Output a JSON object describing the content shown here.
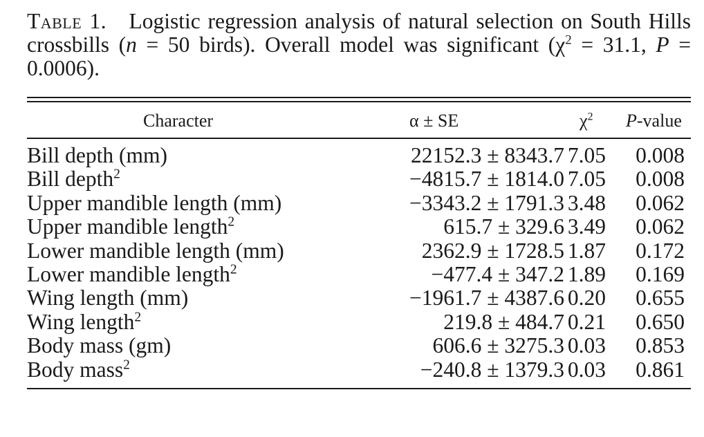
{
  "caption": {
    "label": "Table 1.",
    "text_1": "Logistic regression analysis of natural selection on South Hills crossbills (",
    "n_var": "n",
    "text_2": " = 50 birds). Overall model was significant (χ",
    "sup": "2",
    "text_3": " = 31.1, ",
    "p_var": "P",
    "text_4": " = 0.0006)."
  },
  "table": {
    "headers": {
      "character": "Character",
      "alpha_se": "α ± SE",
      "chi": "χ",
      "chi_sup": "2",
      "p_var": "P",
      "p_suffix": "-value"
    },
    "rows": [
      {
        "character": "Bill depth (mm)",
        "sup": "",
        "alpha_se": "22152.3 ± 8343.7",
        "chi2": "7.05",
        "p": "0.008"
      },
      {
        "character": "Bill depth",
        "sup": "2",
        "alpha_se": "−4815.7 ± 1814.0",
        "chi2": "7.05",
        "p": "0.008"
      },
      {
        "character": "Upper mandible length (mm)",
        "sup": "",
        "alpha_se": "−3343.2 ± 1791.3",
        "chi2": "3.48",
        "p": "0.062"
      },
      {
        "character": "Upper mandible length",
        "sup": "2",
        "alpha_se": "615.7 ± 329.6",
        "chi2": "3.49",
        "p": "0.062"
      },
      {
        "character": "Lower mandible length (mm)",
        "sup": "",
        "alpha_se": "2362.9 ± 1728.5",
        "chi2": "1.87",
        "p": "0.172"
      },
      {
        "character": "Lower mandible length",
        "sup": "2",
        "alpha_se": "−477.4 ± 347.2",
        "chi2": "1.89",
        "p": "0.169"
      },
      {
        "character": "Wing length (mm)",
        "sup": "",
        "alpha_se": "−1961.7 ± 4387.6",
        "chi2": "0.20",
        "p": "0.655"
      },
      {
        "character": "Wing length",
        "sup": "2",
        "alpha_se": "219.8 ± 484.7",
        "chi2": "0.21",
        "p": "0.650"
      },
      {
        "character": "Body mass (gm)",
        "sup": "",
        "alpha_se": "606.6 ± 3275.3",
        "chi2": "0.03",
        "p": "0.853"
      },
      {
        "character": "Body mass",
        "sup": "2",
        "alpha_se": "−240.8 ± 1379.3",
        "chi2": "0.03",
        "p": "0.861"
      }
    ]
  }
}
